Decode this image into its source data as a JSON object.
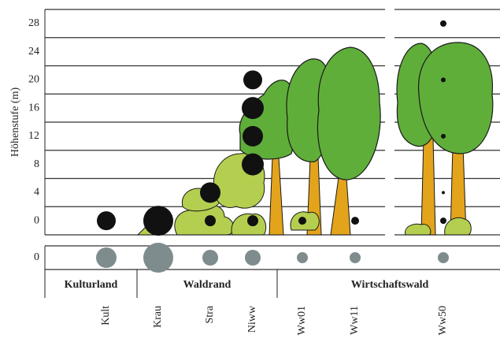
{
  "chart_data": {
    "type": "bubble",
    "y_label": "Höhenstufe (m)",
    "categories": [
      "Kult",
      "Krau",
      "Stra",
      "Niww",
      "Ww01",
      "Ww11",
      "Ww50"
    ],
    "groups": [
      {
        "name": "Kulturland",
        "categories": [
          "Kult"
        ]
      },
      {
        "name": "Waldrand",
        "categories": [
          "Krau",
          "Stra",
          "Niww"
        ]
      },
      {
        "name": "Wirtschaftswald",
        "categories": [
          "Ww01",
          "Ww11",
          "Ww50"
        ]
      }
    ],
    "ylim": [
      -2,
      30
    ],
    "yticks": [
      0,
      4,
      8,
      12,
      16,
      20,
      24,
      28
    ],
    "points": {
      "color": "#111111",
      "x": [
        "Kult",
        "Krau",
        "Stra",
        "Stra",
        "Niww",
        "Niww",
        "Niww",
        "Niww",
        "Niww",
        "Ww01",
        "Ww11",
        "Ww50",
        "Ww50",
        "Ww50",
        "Ww50",
        "Ww50"
      ],
      "y": [
        0,
        0,
        0,
        4,
        0,
        8,
        12,
        16,
        20,
        0,
        0,
        0,
        4,
        12,
        20,
        28
      ],
      "size": [
        12,
        19,
        7,
        13,
        7,
        14,
        13,
        14,
        12,
        5,
        5,
        4,
        2,
        3,
        3,
        4
      ]
    },
    "ground": {
      "color": "#7f8c8d",
      "ytick": 0,
      "size": [
        13,
        19,
        10,
        10,
        7,
        7,
        7
      ]
    }
  }
}
